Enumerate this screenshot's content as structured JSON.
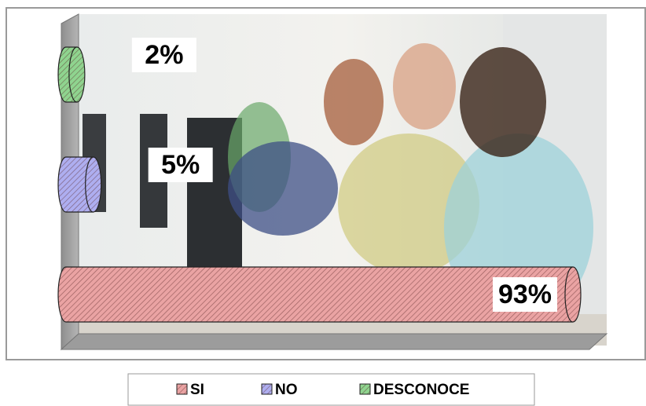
{
  "chart_data": {
    "type": "cylinder-bar",
    "series": [
      {
        "name": "SI",
        "color": "#eaa3a3",
        "values": [
          93
        ],
        "value_labels": [
          "93%"
        ]
      },
      {
        "name": "NO",
        "color": "#aeaef0",
        "values": [
          5
        ],
        "value_labels": [
          "5%"
        ]
      },
      {
        "name": "DESCONOCE",
        "color": "#8fd48f",
        "values": [
          2
        ],
        "value_labels": [
          "2%"
        ]
      }
    ]
  }
}
